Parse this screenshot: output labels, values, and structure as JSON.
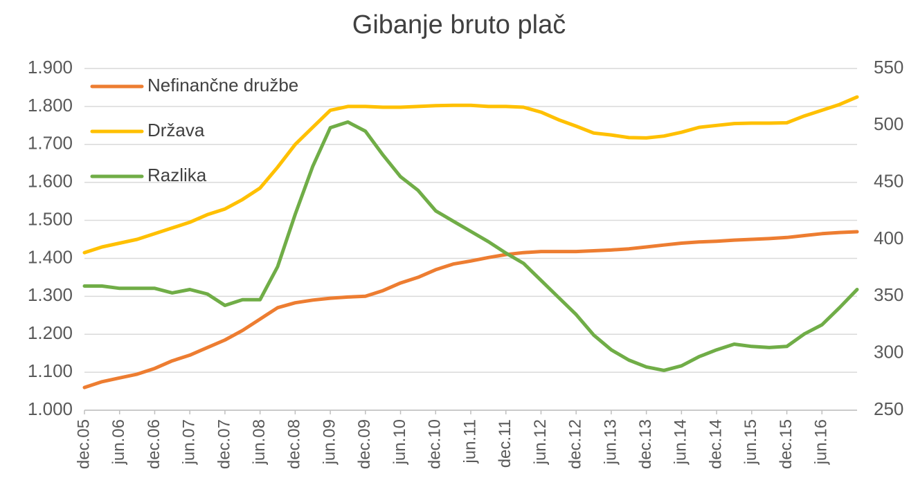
{
  "chart_data": {
    "type": "line",
    "title": "Gibanje bruto plač",
    "categories": [
      "dec.05",
      null,
      "jun.06",
      null,
      "dec.06",
      null,
      "jun.07",
      null,
      "dec.07",
      null,
      "jun.08",
      null,
      "dec.08",
      null,
      "jun.09",
      null,
      "dec.09",
      null,
      "jun.10",
      null,
      "dec.10",
      null,
      "jun.11",
      null,
      "dec.11",
      null,
      "jun.12",
      null,
      "dec.12",
      null,
      "jun.13",
      null,
      "dec.13",
      null,
      "jun.14",
      null,
      "dec.14",
      null,
      "jun.15",
      null,
      "dec.15",
      null,
      "jun.16",
      null,
      null
    ],
    "series": [
      {
        "name": "Nefinančne družbe",
        "color": "#ed7d31",
        "values": [
          1060,
          1075,
          1085,
          1095,
          1110,
          1130,
          1145,
          1165,
          1185,
          1210,
          1240,
          1270,
          1283,
          1290,
          1295,
          1298,
          1300,
          1315,
          1335,
          1350,
          1370,
          1385,
          1393,
          1402,
          1410,
          1415,
          1418,
          1418,
          1418,
          1420,
          1422,
          1425,
          1430,
          1435,
          1440,
          1443,
          1445,
          1448,
          1450,
          1452,
          1455,
          1460,
          1465,
          1468,
          1470
        ]
      },
      {
        "name": "Država",
        "color": "#ffc000",
        "values": [
          1415,
          1430,
          1440,
          1450,
          1465,
          1480,
          1495,
          1515,
          1530,
          1555,
          1585,
          1640,
          1700,
          1745,
          1790,
          1800,
          1800,
          1798,
          1798,
          1800,
          1802,
          1803,
          1803,
          1800,
          1800,
          1798,
          1785,
          1765,
          1748,
          1730,
          1725,
          1718,
          1717,
          1722,
          1732,
          1745,
          1750,
          1755,
          1756,
          1756,
          1757,
          1775,
          1790,
          1805,
          1825
        ]
      },
      {
        "name": "Razlika",
        "color": "#70ad47",
        "axis": "y2",
        "values": [
          359,
          359,
          357,
          357,
          357,
          353,
          356,
          352,
          342,
          347,
          347,
          376,
          422,
          464,
          498,
          503,
          495,
          474,
          455,
          443,
          425,
          416,
          407,
          398,
          388,
          379,
          364,
          349,
          334,
          316,
          303,
          294,
          288,
          285,
          289,
          297,
          303,
          308,
          306,
          305,
          306,
          317,
          325,
          340,
          356
        ]
      }
    ],
    "ylim": [
      1000,
      1900
    ],
    "yticks": [
      {
        "value": 1000,
        "label": "1.000"
      },
      {
        "value": 1100,
        "label": "1.100"
      },
      {
        "value": 1200,
        "label": "1.200"
      },
      {
        "value": 1300,
        "label": "1.300"
      },
      {
        "value": 1400,
        "label": "1.400"
      },
      {
        "value": 1500,
        "label": "1.500"
      },
      {
        "value": 1600,
        "label": "1.600"
      },
      {
        "value": 1700,
        "label": "1.700"
      },
      {
        "value": 1800,
        "label": "1.800"
      },
      {
        "value": 1900,
        "label": "1.900"
      }
    ],
    "y2lim": [
      250,
      550
    ],
    "y2ticks": [
      250,
      300,
      350,
      400,
      450,
      500,
      550
    ],
    "grid": true,
    "legend": "upper left"
  }
}
